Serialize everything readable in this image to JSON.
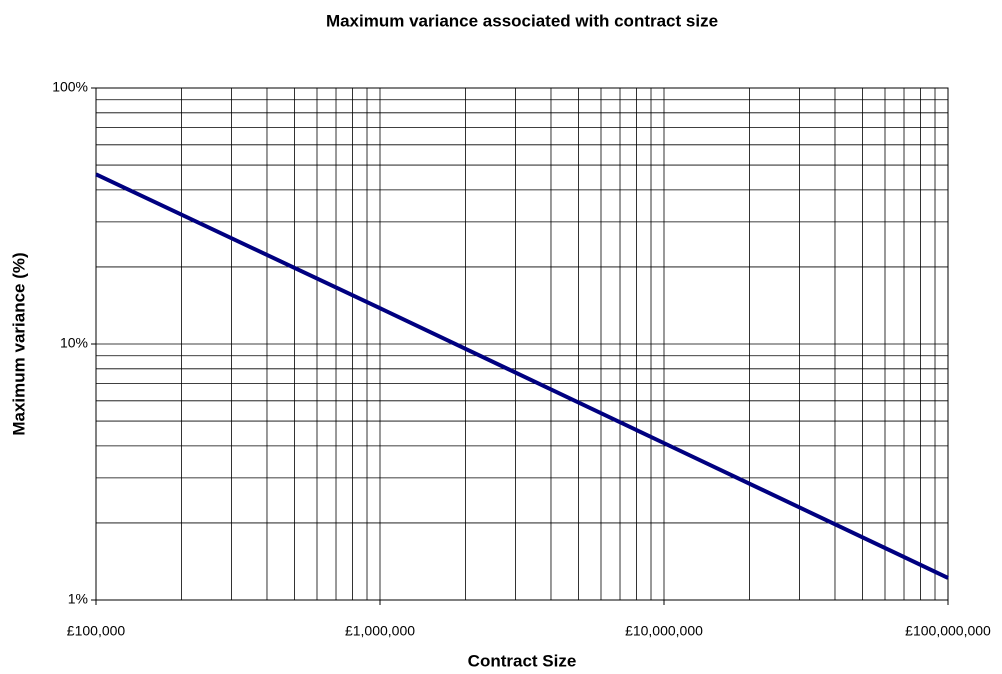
{
  "chart_data": {
    "type": "line",
    "title": "Maximum variance associated with contract size",
    "x_label": "Contract Size",
    "y_label": "Maximum variance (%)",
    "x": [
      100000,
      1000000,
      10000000,
      100000000
    ],
    "values": [
      46,
      13.8,
      4.1,
      1.22
    ],
    "color": "#000080",
    "xscale": "log",
    "yscale": "log",
    "xlim": [
      100000,
      100000000
    ],
    "ylim": [
      1,
      100
    ],
    "xticks": [
      {
        "value": 100000,
        "label": "£100,000"
      },
      {
        "value": 1000000,
        "label": "£1,000,000"
      },
      {
        "value": 10000000,
        "label": "£10,000,000"
      },
      {
        "value": 100000000,
        "label": "£100,000,000"
      }
    ],
    "yticks": [
      {
        "value": 1,
        "label": "1%"
      },
      {
        "value": 10,
        "label": "10%"
      },
      {
        "value": 100,
        "label": "100%"
      }
    ],
    "xminorticks": [
      200000,
      300000,
      400000,
      500000,
      600000,
      700000,
      800000,
      900000,
      2000000,
      3000000,
      4000000,
      5000000,
      6000000,
      7000000,
      8000000,
      9000000,
      20000000,
      30000000,
      40000000,
      50000000,
      60000000,
      70000000,
      80000000,
      90000000
    ],
    "yminorticks": [
      2,
      3,
      4,
      5,
      6,
      7,
      8,
      9,
      20,
      30,
      40,
      50,
      60,
      70,
      80,
      90
    ],
    "grid": true
  }
}
